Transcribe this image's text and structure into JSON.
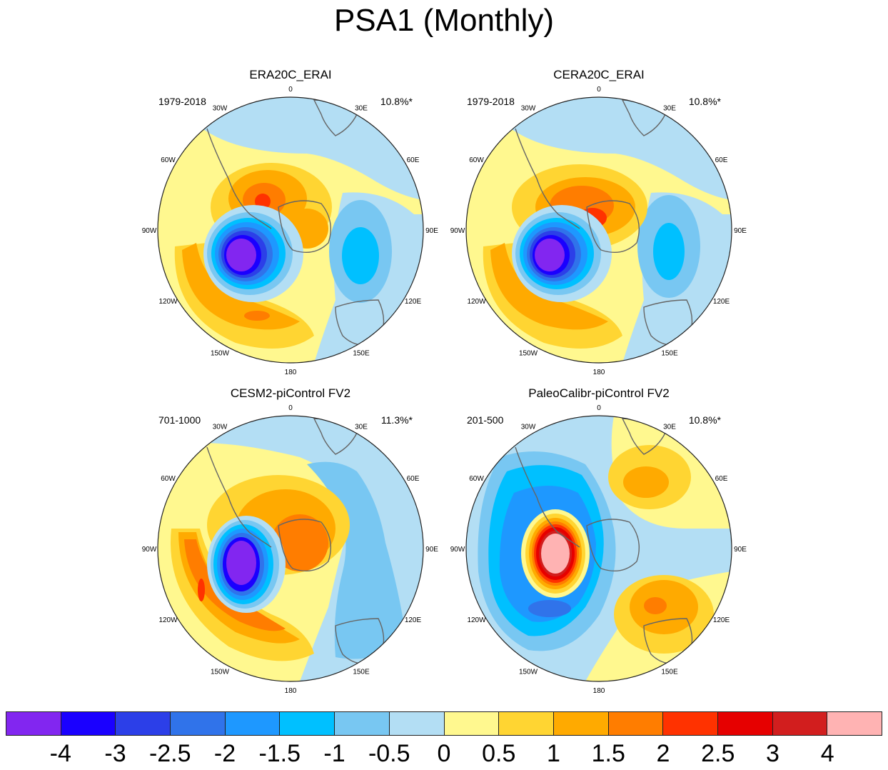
{
  "title": "PSA1 (Monthly)",
  "panels": [
    {
      "title": "ERA20C_ERAI",
      "period": "1979-2018",
      "variance": "10.8%*",
      "pattern": "psa"
    },
    {
      "title": "CERA20C_ERAI",
      "period": "1979-2018",
      "variance": "10.8%*",
      "pattern": "psa"
    },
    {
      "title": "CESM2-piControl FV2",
      "period": "701-1000",
      "variance": "11.3%*",
      "pattern": "psa"
    },
    {
      "title": "PaleoCalibr-piControl FV2",
      "period": "201-500",
      "variance": "10.8%*",
      "pattern": "paleo"
    }
  ],
  "lon_labels": [
    "0",
    "30E",
    "60E",
    "90E",
    "120E",
    "150E",
    "180",
    "150W",
    "120W",
    "90W",
    "60W",
    "30W"
  ],
  "colorbar": {
    "colors": [
      "#8226f0",
      "#1a00ff",
      "#2c3fe8",
      "#3073ea",
      "#1e98ff",
      "#00c0ff",
      "#78c7f2",
      "#b3def4",
      "#fff88f",
      "#ffd532",
      "#ffaa00",
      "#ff7d00",
      "#ff3200",
      "#e60000",
      "#d21e1e",
      "#ffb3b3"
    ],
    "labels": [
      "-4",
      "-3",
      "-2.5",
      "-2",
      "-1.5",
      "-1",
      "-0.5",
      "0",
      "0.5",
      "1",
      "1.5",
      "2",
      "2.5",
      "3",
      "4"
    ]
  }
}
